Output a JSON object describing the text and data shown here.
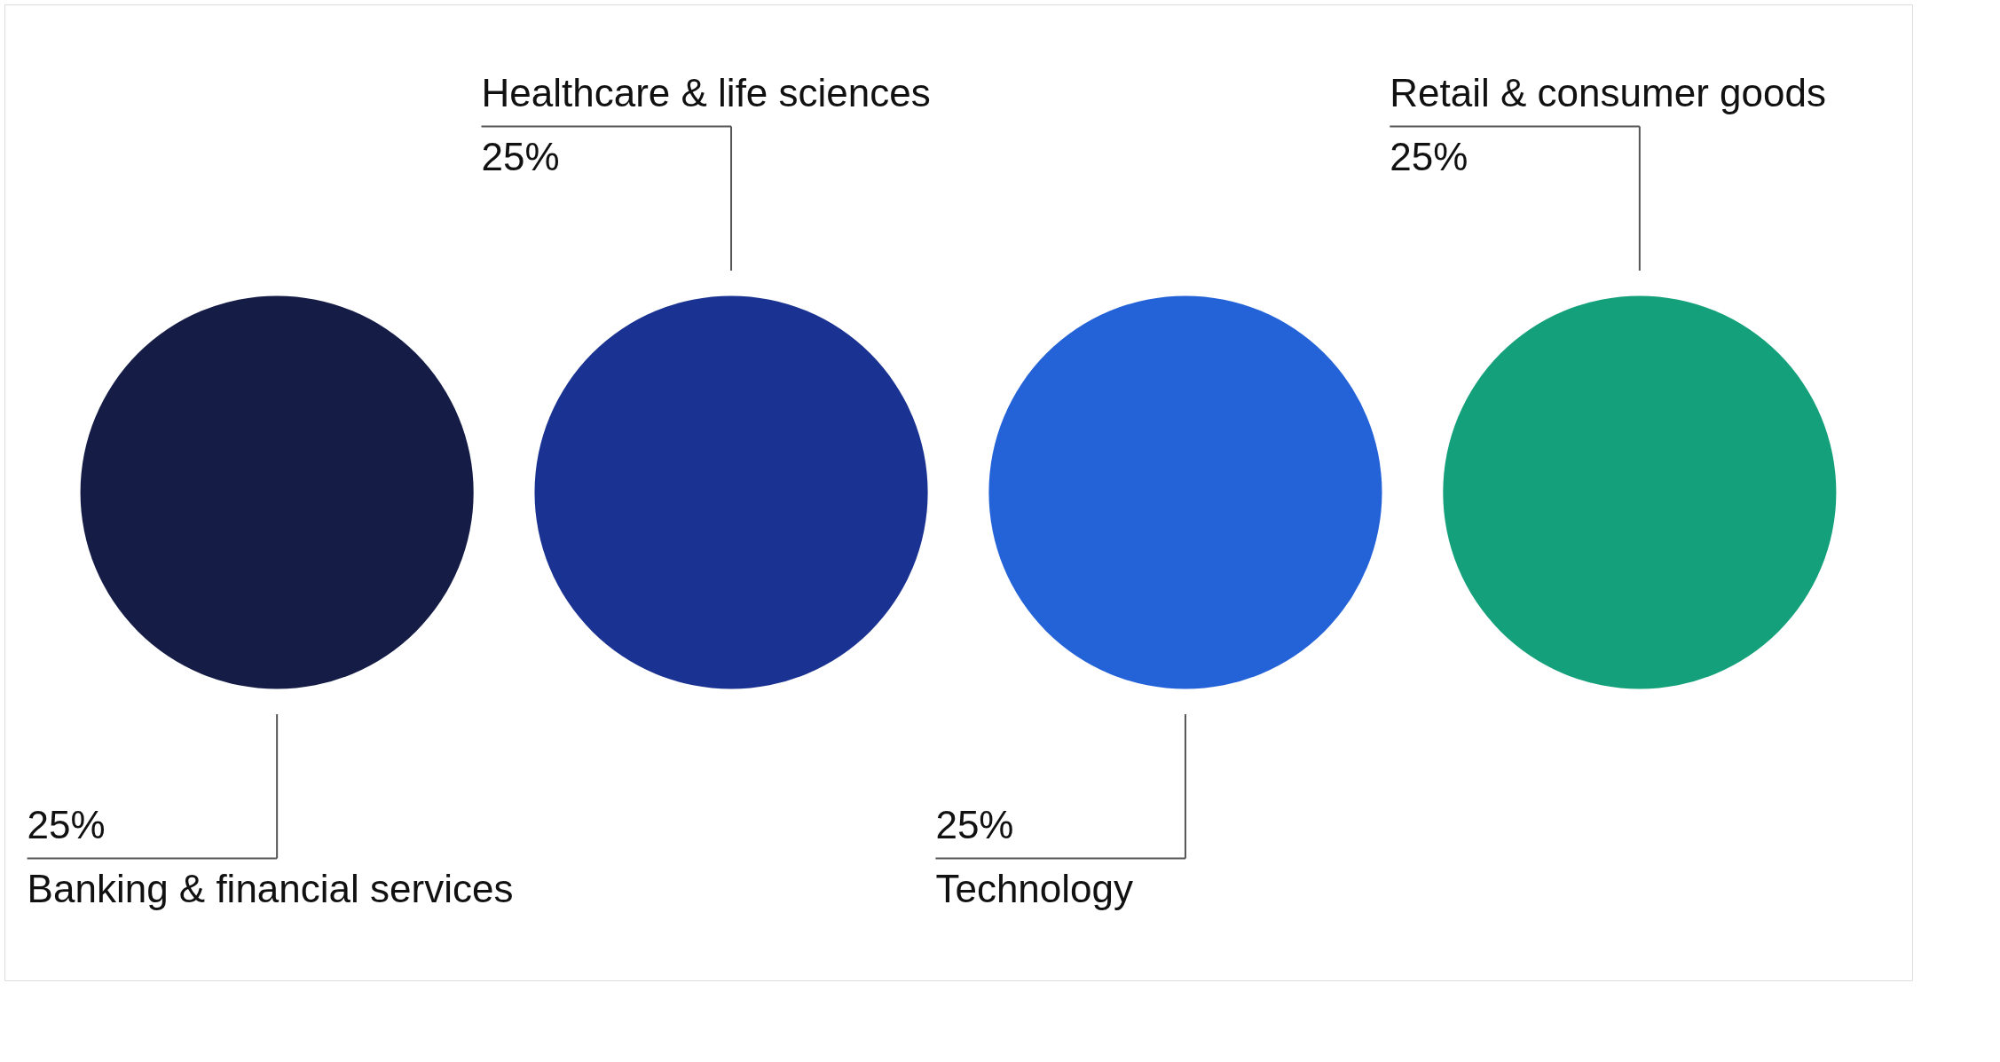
{
  "chart_data": {
    "type": "other",
    "categories": [
      "Banking\n& financial\nservices",
      "Healthcare\n& life sciences",
      "Technology",
      "Retail\n& consumer goods"
    ],
    "values": [
      25,
      25,
      25,
      25
    ],
    "value_labels": [
      "25%",
      "25%",
      "25%",
      "25%"
    ],
    "colors": [
      "#151d47",
      "#1a3291",
      "#2462d8",
      "#13a07a"
    ]
  }
}
